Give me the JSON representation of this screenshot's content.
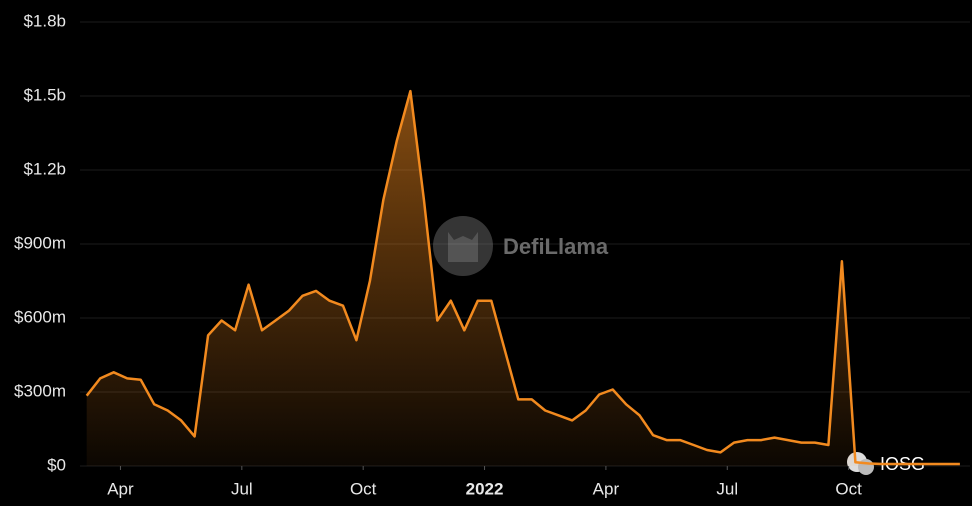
{
  "chart_data": {
    "type": "area",
    "watermark": "DefiLlama",
    "source": "IOSG",
    "color": "#f28a1f",
    "grid": true,
    "x": [
      "2021-03",
      "2021-03",
      "2021-03",
      "2021-04",
      "2021-04",
      "2021-04",
      "2021-05",
      "2021-05",
      "2021-05",
      "2021-06",
      "2021-06",
      "2021-06",
      "2021-07",
      "2021-07",
      "2021-07",
      "2021-08",
      "2021-08",
      "2021-08",
      "2021-09",
      "2021-09",
      "2021-09",
      "2021-10",
      "2021-10",
      "2021-10",
      "2021-11",
      "2021-11",
      "2021-11",
      "2021-12",
      "2021-12",
      "2021-12",
      "2022-01",
      "2022-01",
      "2022-01",
      "2022-02",
      "2022-02",
      "2022-02",
      "2022-03",
      "2022-03",
      "2022-03",
      "2022-04",
      "2022-04",
      "2022-04",
      "2022-05",
      "2022-05",
      "2022-05",
      "2022-06",
      "2022-06",
      "2022-06",
      "2022-07",
      "2022-07",
      "2022-07",
      "2022-08",
      "2022-08",
      "2022-08",
      "2022-09",
      "2022-09",
      "2022-09",
      "2022-10",
      "2022-10",
      "2022-10",
      "2022-11",
      "2022-11",
      "2022-11",
      "2022-12",
      "2022-12"
    ],
    "values": [
      285,
      355,
      380,
      355,
      350,
      250,
      225,
      185,
      120,
      530,
      590,
      550,
      735,
      550,
      590,
      630,
      690,
      710,
      670,
      650,
      510,
      750,
      1080,
      1320,
      1520,
      1080,
      590,
      670,
      550,
      670,
      670,
      470,
      270,
      270,
      225,
      205,
      185,
      225,
      290,
      310,
      250,
      205,
      125,
      105,
      105,
      85,
      65,
      55,
      95,
      105,
      105,
      115,
      105,
      95,
      95,
      85,
      830,
      15,
      10,
      8,
      8,
      8,
      8,
      8,
      8
    ],
    "xlim": [
      "2021-03",
      "2022-12"
    ],
    "xticks": [
      {
        "value": "2021-04",
        "label": "Apr"
      },
      {
        "value": "2021-07",
        "label": "Jul"
      },
      {
        "value": "2021-10",
        "label": "Oct"
      },
      {
        "value": "2022-01",
        "label": "2022"
      },
      {
        "value": "2022-04",
        "label": "Apr"
      },
      {
        "value": "2022-07",
        "label": "Jul"
      },
      {
        "value": "2022-10",
        "label": "Oct"
      }
    ],
    "ylim": [
      0,
      1800
    ],
    "yticks": [
      {
        "value": 0,
        "label": "$0"
      },
      {
        "value": 300,
        "label": "$300m"
      },
      {
        "value": 600,
        "label": "$600m"
      },
      {
        "value": 900,
        "label": "$900m"
      },
      {
        "value": 1200,
        "label": "$1.2b"
      },
      {
        "value": 1500,
        "label": "$1.5b"
      },
      {
        "value": 1800,
        "label": "$1.8b"
      }
    ]
  }
}
